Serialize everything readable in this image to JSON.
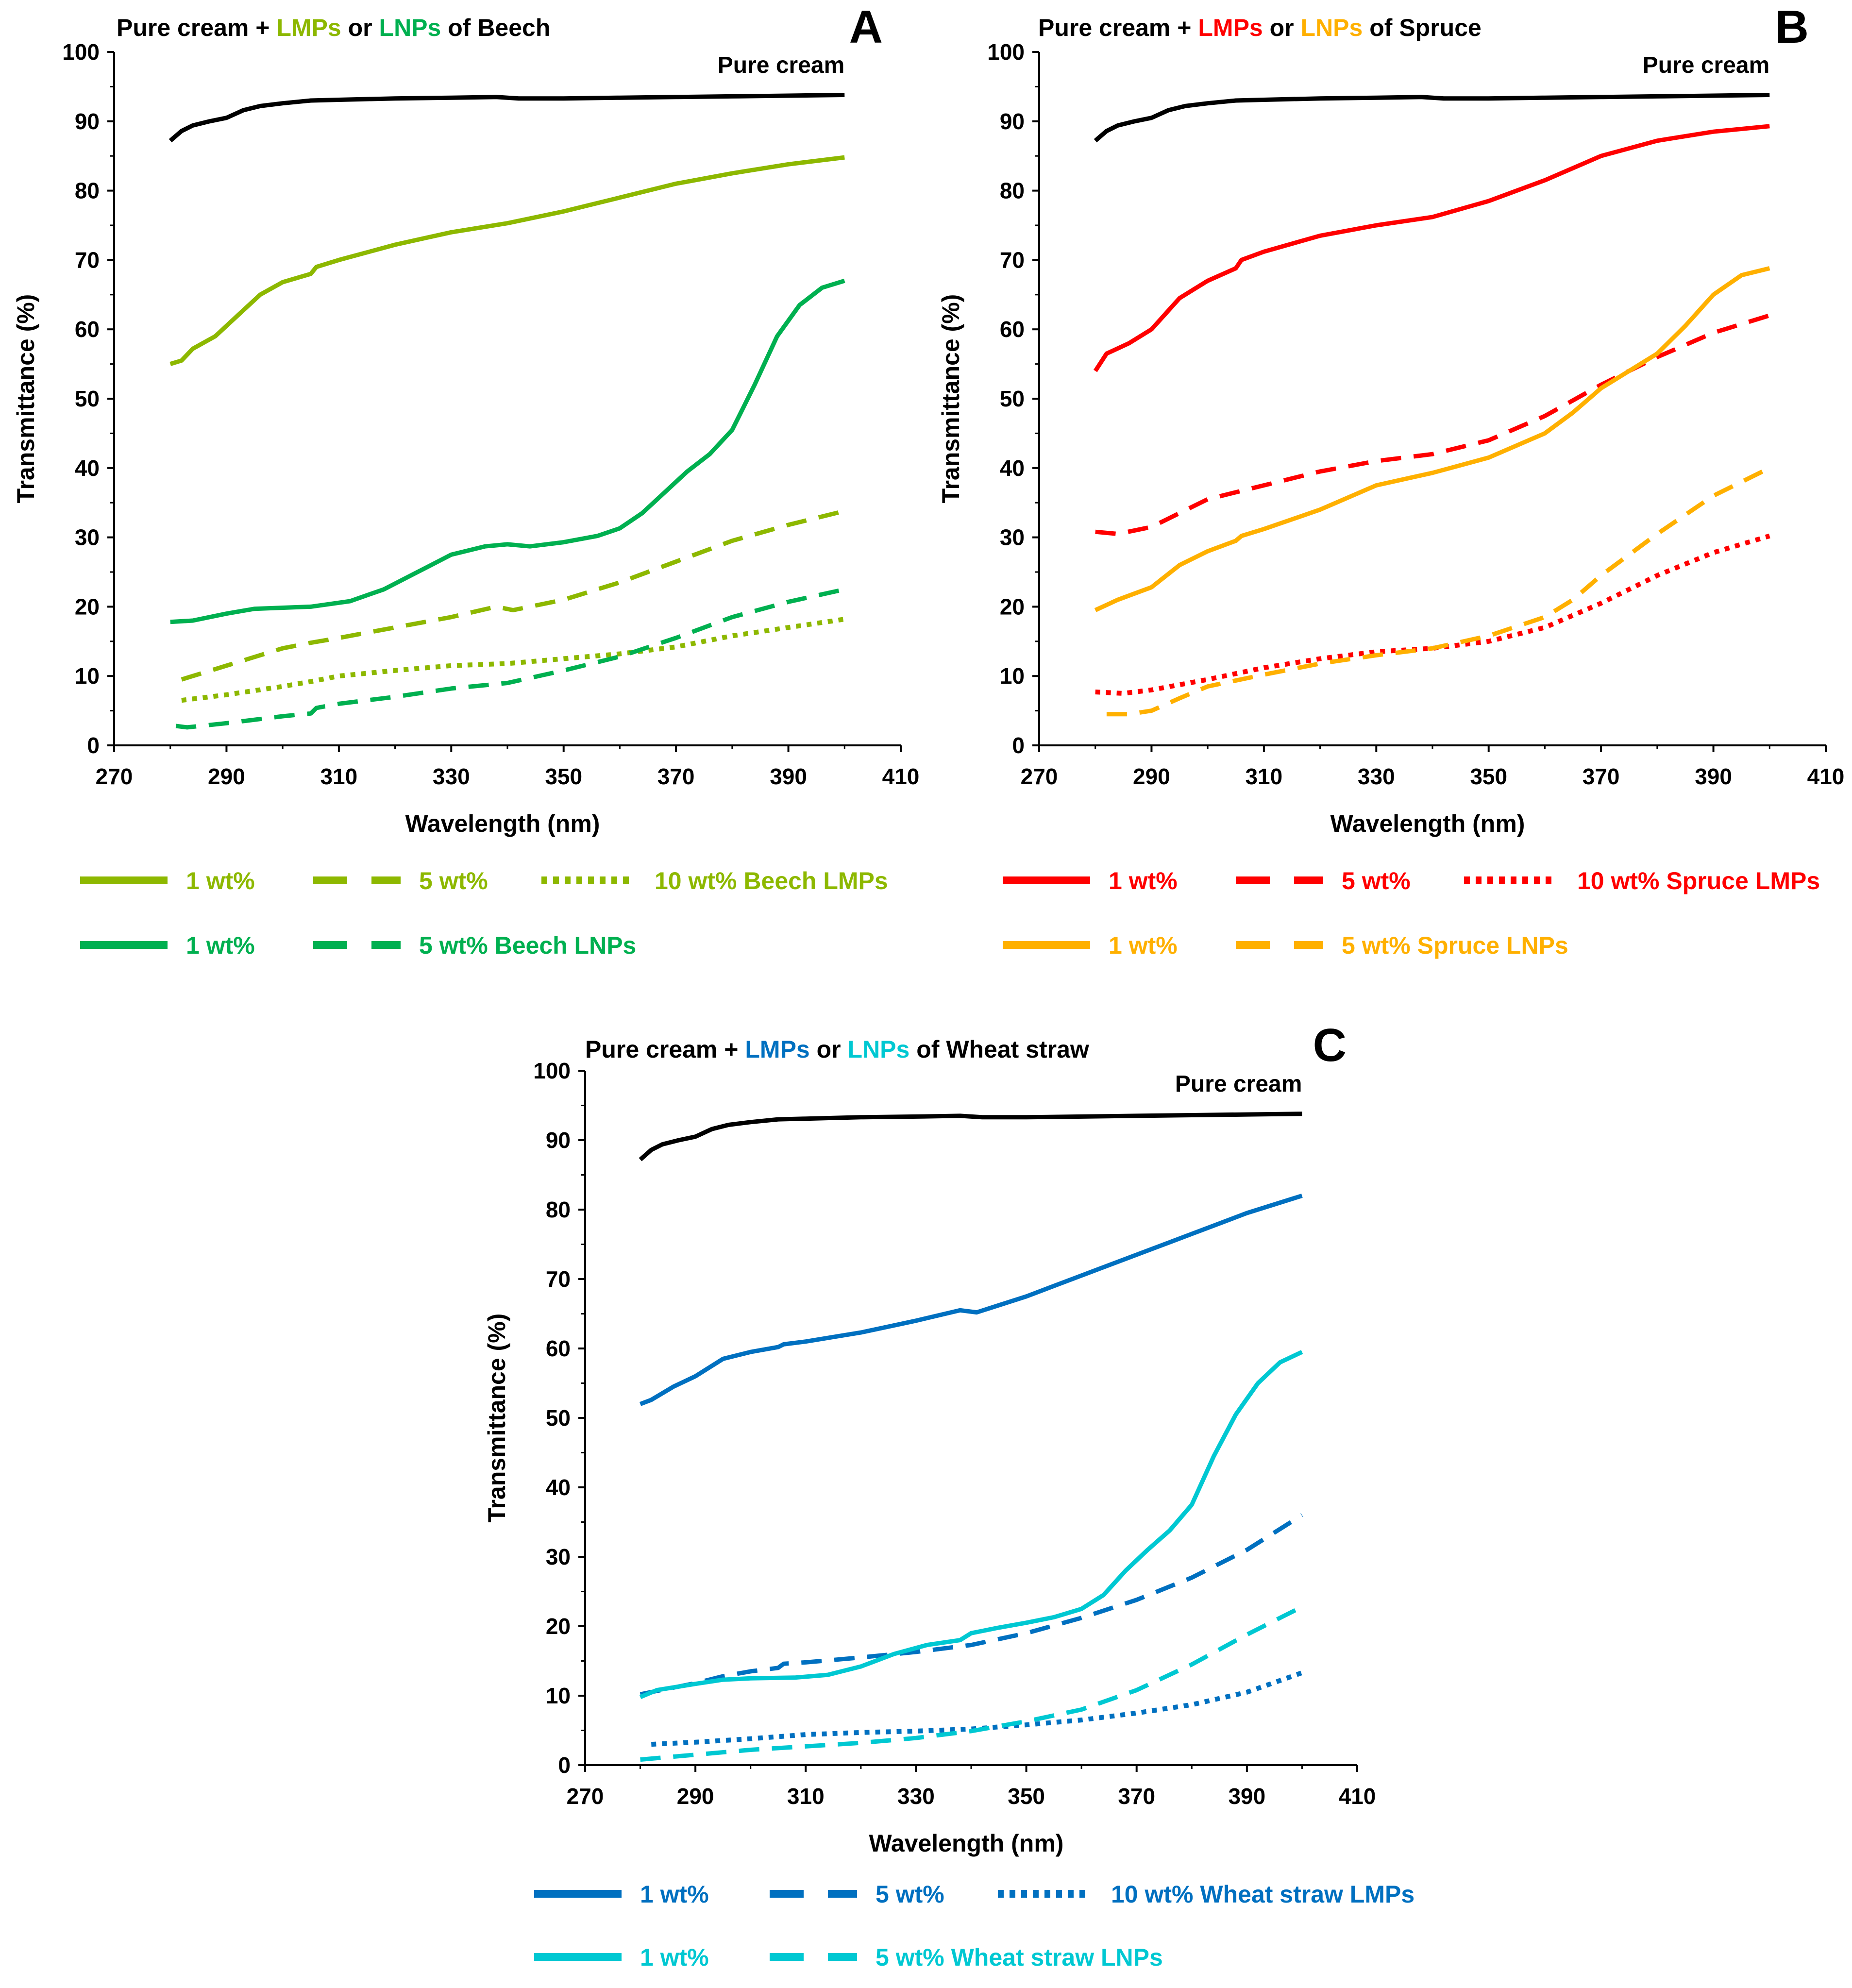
{
  "chart_data": [
    {
      "type": "line",
      "panel": "A",
      "title": {
        "prefix": "Pure cream + ",
        "lmps": "LMPs",
        "mid": " or ",
        "lnps": "LNPs",
        "suffix": " of Beech"
      },
      "xlabel": "Wavelength (nm)",
      "ylabel": "Transmittance (%)",
      "xlim": [
        270,
        410
      ],
      "ylim": [
        0,
        100
      ],
      "xticks": [
        270,
        290,
        310,
        330,
        350,
        370,
        390,
        410
      ],
      "yticks": [
        0,
        10,
        20,
        30,
        40,
        50,
        60,
        70,
        80,
        90,
        100
      ],
      "annotation": "Pure cream",
      "series": [
        {
          "name": "Pure cream",
          "color": "#000000",
          "dash": "solid",
          "x": [
            280,
            282,
            284,
            287,
            290,
            293,
            296,
            300,
            305,
            310,
            320,
            330,
            338,
            342,
            350,
            360,
            370,
            380,
            390,
            400
          ],
          "y": [
            87.2,
            88.6,
            89.4,
            90.0,
            90.5,
            91.6,
            92.2,
            92.6,
            93.0,
            93.1,
            93.3,
            93.4,
            93.5,
            93.3,
            93.3,
            93.4,
            93.5,
            93.6,
            93.7,
            93.8
          ]
        },
        {
          "name": "1 wt% Beech LMPs",
          "color": "#8DB800",
          "dash": "solid",
          "x": [
            280,
            282,
            284,
            288,
            292,
            296,
            300,
            305,
            306,
            310,
            320,
            330,
            340,
            350,
            360,
            370,
            380,
            390,
            400
          ],
          "y": [
            55.0,
            55.5,
            57.2,
            59.0,
            62.0,
            65.0,
            66.8,
            68.0,
            69.0,
            70.0,
            72.2,
            74.0,
            75.3,
            77.0,
            79.0,
            81.0,
            82.5,
            83.8,
            84.8
          ]
        },
        {
          "name": "5 wt% Beech LMPs",
          "color": "#8DB800",
          "dash": "dash",
          "x": [
            282,
            290,
            300,
            305,
            310,
            320,
            330,
            338,
            341,
            350,
            360,
            370,
            380,
            390,
            400
          ],
          "y": [
            9.5,
            11.5,
            14.0,
            14.8,
            15.5,
            17.0,
            18.5,
            20.0,
            19.5,
            21.0,
            23.5,
            26.5,
            29.5,
            31.8,
            33.8
          ]
        },
        {
          "name": "10 wt% Beech LMPs",
          "color": "#8DB800",
          "dash": "dot",
          "x": [
            282,
            290,
            300,
            305,
            310,
            320,
            330,
            340,
            350,
            360,
            370,
            380,
            390,
            400
          ],
          "y": [
            6.5,
            7.3,
            8.5,
            9.2,
            10.0,
            10.8,
            11.5,
            11.8,
            12.5,
            13.2,
            14.2,
            15.8,
            17.0,
            18.2
          ]
        },
        {
          "name": "1 wt% Beech LNPs",
          "color": "#00B050",
          "dash": "solid",
          "x": [
            280,
            284,
            290,
            295,
            305,
            312,
            318,
            324,
            330,
            336,
            340,
            344,
            350,
            356,
            360,
            364,
            368,
            372,
            376,
            380,
            384,
            388,
            392,
            396,
            400
          ],
          "y": [
            17.8,
            18.0,
            19.0,
            19.7,
            20.0,
            20.8,
            22.5,
            25.0,
            27.5,
            28.7,
            29.0,
            28.7,
            29.3,
            30.2,
            31.3,
            33.5,
            36.5,
            39.5,
            42.0,
            45.5,
            52.0,
            59.0,
            63.5,
            66.0,
            67.0
          ]
        },
        {
          "name": "5 wt% Beech LNPs",
          "color": "#00B050",
          "dash": "dash",
          "x": [
            281,
            283,
            290,
            300,
            305,
            306,
            310,
            320,
            330,
            340,
            350,
            360,
            370,
            380,
            390,
            400
          ],
          "y": [
            2.8,
            2.6,
            3.2,
            4.2,
            4.6,
            5.4,
            6.0,
            7.0,
            8.2,
            9.0,
            10.8,
            12.8,
            15.5,
            18.5,
            20.7,
            22.5
          ]
        }
      ],
      "legend": [
        {
          "label": "1 wt%",
          "color": "#8DB800",
          "dash": "solid"
        },
        {
          "label": "5 wt%",
          "color": "#8DB800",
          "dash": "dash"
        },
        {
          "label": "10 wt%  Beech LMPs",
          "color": "#8DB800",
          "dash": "dot"
        },
        {
          "label": "1 wt%",
          "color": "#00B050",
          "dash": "solid"
        },
        {
          "label": "5 wt%  Beech LNPs",
          "color": "#00B050",
          "dash": "dash"
        }
      ],
      "colors": {
        "lmps": "#8DB800",
        "lnps": "#00B050"
      }
    },
    {
      "type": "line",
      "panel": "B",
      "title": {
        "prefix": "Pure cream + ",
        "lmps": "LMPs",
        "mid": " or ",
        "lnps": "LNPs",
        "suffix": " of Spruce"
      },
      "xlabel": "Wavelength (nm)",
      "ylabel": "Transmittance (%)",
      "xlim": [
        270,
        410
      ],
      "ylim": [
        0,
        100
      ],
      "xticks": [
        270,
        290,
        310,
        330,
        350,
        370,
        390,
        410
      ],
      "yticks": [
        0,
        10,
        20,
        30,
        40,
        50,
        60,
        70,
        80,
        90,
        100
      ],
      "annotation": "Pure cream",
      "series": [
        {
          "name": "Pure cream",
          "color": "#000000",
          "dash": "solid",
          "x": [
            280,
            282,
            284,
            287,
            290,
            293,
            296,
            300,
            305,
            310,
            320,
            330,
            338,
            342,
            350,
            360,
            370,
            380,
            390,
            400
          ],
          "y": [
            87.2,
            88.6,
            89.4,
            90.0,
            90.5,
            91.6,
            92.2,
            92.6,
            93.0,
            93.1,
            93.3,
            93.4,
            93.5,
            93.3,
            93.3,
            93.4,
            93.5,
            93.6,
            93.7,
            93.8
          ]
        },
        {
          "name": "1 wt% Spruce LMPs",
          "color": "#FF0000",
          "dash": "solid",
          "x": [
            280,
            282,
            286,
            290,
            295,
            300,
            305,
            306,
            310,
            320,
            330,
            340,
            350,
            360,
            370,
            380,
            390,
            400
          ],
          "y": [
            54.0,
            56.5,
            58.0,
            60.0,
            64.5,
            67.0,
            68.8,
            70.0,
            71.2,
            73.5,
            75.0,
            76.2,
            78.5,
            81.5,
            85.0,
            87.2,
            88.5,
            89.3
          ]
        },
        {
          "name": "5 wt% Spruce LMPs",
          "color": "#FF0000",
          "dash": "dash",
          "x": [
            280,
            284,
            290,
            295,
            300,
            310,
            320,
            330,
            340,
            350,
            360,
            370,
            380,
            390,
            400
          ],
          "y": [
            30.8,
            30.5,
            31.5,
            33.5,
            35.5,
            37.5,
            39.5,
            41.0,
            42.0,
            44.0,
            47.5,
            52.0,
            56.0,
            59.5,
            62.0
          ]
        },
        {
          "name": "10 wt% Spruce LMPs",
          "color": "#FF0000",
          "dash": "dot",
          "x": [
            280,
            285,
            290,
            300,
            310,
            320,
            330,
            340,
            350,
            360,
            370,
            380,
            390,
            400
          ],
          "y": [
            7.7,
            7.5,
            8.0,
            9.5,
            11.2,
            12.5,
            13.5,
            14.0,
            15.0,
            17.0,
            20.5,
            24.5,
            27.8,
            30.2
          ]
        },
        {
          "name": "1 wt% Spruce LNPs",
          "color": "#FFB000",
          "dash": "solid",
          "x": [
            280,
            284,
            290,
            295,
            300,
            305,
            306,
            310,
            320,
            330,
            340,
            350,
            360,
            365,
            370,
            380,
            385,
            390,
            395,
            400
          ],
          "y": [
            19.5,
            21.0,
            22.8,
            26.0,
            28.0,
            29.5,
            30.2,
            31.2,
            34.0,
            37.5,
            39.3,
            41.5,
            45.0,
            48.0,
            51.5,
            56.5,
            60.5,
            65.0,
            67.8,
            68.8
          ]
        },
        {
          "name": "5 wt% Spruce LNPs",
          "color": "#FFB000",
          "dash": "dash",
          "x": [
            282,
            286,
            290,
            295,
            300,
            310,
            320,
            330,
            340,
            350,
            360,
            365,
            370,
            380,
            390,
            400
          ],
          "y": [
            4.5,
            4.5,
            5.0,
            6.8,
            8.5,
            10.2,
            11.8,
            13.0,
            14.0,
            15.8,
            18.5,
            21.0,
            24.5,
            30.5,
            36.0,
            40.0
          ]
        }
      ],
      "legend": [
        {
          "label": "1 wt%",
          "color": "#FF0000",
          "dash": "solid"
        },
        {
          "label": "5 wt%",
          "color": "#FF0000",
          "dash": "dash"
        },
        {
          "label": "10 wt%  Spruce LMPs",
          "color": "#FF0000",
          "dash": "dot"
        },
        {
          "label": "1 wt%",
          "color": "#FFB000",
          "dash": "solid"
        },
        {
          "label": "5 wt%  Spruce LNPs",
          "color": "#FFB000",
          "dash": "dash"
        }
      ],
      "colors": {
        "lmps": "#FF0000",
        "lnps": "#FFB000"
      }
    },
    {
      "type": "line",
      "panel": "C",
      "title": {
        "prefix": "Pure cream + ",
        "lmps": "LMPs",
        "mid": " or ",
        "lnps": "LNPs",
        "suffix": " of Wheat straw"
      },
      "xlabel": "Wavelength (nm)",
      "ylabel": "Transmittance (%)",
      "xlim": [
        270,
        410
      ],
      "ylim": [
        0,
        100
      ],
      "xticks": [
        270,
        290,
        310,
        330,
        350,
        370,
        390,
        410
      ],
      "yticks": [
        0,
        10,
        20,
        30,
        40,
        50,
        60,
        70,
        80,
        90,
        100
      ],
      "annotation": "Pure cream",
      "series": [
        {
          "name": "Pure cream",
          "color": "#000000",
          "dash": "solid",
          "x": [
            280,
            282,
            284,
            287,
            290,
            293,
            296,
            300,
            305,
            310,
            320,
            330,
            338,
            342,
            350,
            360,
            370,
            380,
            390,
            400
          ],
          "y": [
            87.2,
            88.6,
            89.4,
            90.0,
            90.5,
            91.6,
            92.2,
            92.6,
            93.0,
            93.1,
            93.3,
            93.4,
            93.5,
            93.3,
            93.3,
            93.4,
            93.5,
            93.6,
            93.7,
            93.8
          ]
        },
        {
          "name": "1 wt% Wheat straw LMPs",
          "color": "#0070C0",
          "dash": "solid",
          "x": [
            280,
            282,
            286,
            290,
            295,
            300,
            305,
            306,
            310,
            320,
            330,
            338,
            341,
            350,
            360,
            370,
            380,
            390,
            400
          ],
          "y": [
            52.0,
            52.6,
            54.5,
            56.0,
            58.5,
            59.5,
            60.2,
            60.6,
            61.0,
            62.3,
            64.0,
            65.5,
            65.2,
            67.5,
            70.5,
            73.5,
            76.5,
            79.5,
            82.0
          ]
        },
        {
          "name": "5 wt% Wheat straw LMPs",
          "color": "#0070C0",
          "dash": "dash",
          "x": [
            280,
            285,
            290,
            295,
            300,
            305,
            306,
            310,
            320,
            330,
            340,
            350,
            360,
            370,
            380,
            390,
            400
          ],
          "y": [
            10.2,
            11.0,
            11.8,
            12.8,
            13.5,
            14.0,
            14.6,
            14.8,
            15.5,
            16.3,
            17.3,
            19.0,
            21.2,
            23.8,
            27.0,
            31.0,
            36.0
          ]
        },
        {
          "name": "10 wt% Wheat straw LMPs",
          "color": "#0070C0",
          "dash": "dot",
          "x": [
            282,
            290,
            300,
            310,
            320,
            330,
            340,
            350,
            360,
            370,
            380,
            390,
            400
          ],
          "y": [
            3.0,
            3.3,
            3.8,
            4.4,
            4.7,
            4.9,
            5.2,
            5.8,
            6.5,
            7.5,
            8.7,
            10.5,
            13.3
          ]
        },
        {
          "name": "1 wt% Wheat straw LNPs",
          "color": "#00C8D2",
          "dash": "solid",
          "x": [
            280,
            283,
            290,
            295,
            300,
            308,
            314,
            320,
            326,
            332,
            338,
            340,
            345,
            350,
            355,
            360,
            364,
            368,
            372,
            376,
            380,
            384,
            388,
            392,
            396,
            400
          ],
          "y": [
            9.8,
            10.8,
            11.7,
            12.3,
            12.5,
            12.6,
            13.0,
            14.2,
            16.0,
            17.3,
            18.0,
            19.0,
            19.8,
            20.5,
            21.3,
            22.5,
            24.5,
            28.0,
            31.0,
            33.8,
            37.5,
            44.5,
            50.5,
            55.0,
            58.0,
            59.5
          ]
        },
        {
          "name": "5 wt% Wheat straw LNPs",
          "color": "#00C8D2",
          "dash": "dash",
          "x": [
            280,
            290,
            300,
            310,
            320,
            330,
            340,
            350,
            360,
            370,
            380,
            390,
            400
          ],
          "y": [
            0.8,
            1.5,
            2.2,
            2.7,
            3.2,
            3.9,
            4.9,
            6.3,
            8.0,
            10.8,
            14.5,
            18.8,
            22.8
          ]
        }
      ],
      "legend": [
        {
          "label": "1 wt%",
          "color": "#0070C0",
          "dash": "solid"
        },
        {
          "label": "5 wt%",
          "color": "#0070C0",
          "dash": "dash"
        },
        {
          "label": "10 wt%  Wheat straw LMPs",
          "color": "#0070C0",
          "dash": "dot"
        },
        {
          "label": "1 wt%",
          "color": "#00C8D2",
          "dash": "solid"
        },
        {
          "label": "5 wt%  Wheat straw LNPs",
          "color": "#00C8D2",
          "dash": "dash"
        }
      ],
      "colors": {
        "lmps": "#0070C0",
        "lnps": "#00C8D2"
      }
    }
  ]
}
